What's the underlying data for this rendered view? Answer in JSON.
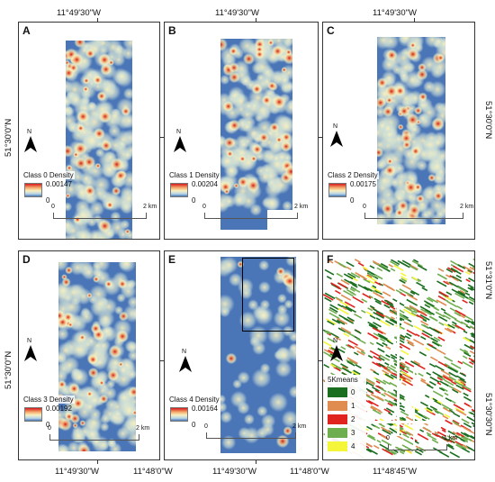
{
  "coords": {
    "top": [
      "11°49'30\"W",
      "11°49'30\"W",
      "11°49'30\"W"
    ],
    "bottom": [
      "11°49'30\"W",
      "11°48'0\"W",
      "11°49'30\"W",
      "11°48'0\"W",
      "11°48'45\"W"
    ],
    "left": [
      "51°30'0\"N",
      "51°30'0\"N"
    ],
    "right": [
      "51°30'0\"N",
      "51°31'0\"N",
      "51°30'30\"N"
    ]
  },
  "panels": [
    {
      "letter": "A",
      "legend_title": "Class 0 Density",
      "max": "0.00147",
      "min": "0",
      "scale_start": "0",
      "scale_end": "2 km"
    },
    {
      "letter": "B",
      "legend_title": "Class 1 Density",
      "max": "0.00204",
      "min": "0",
      "scale_start": "0",
      "scale_end": "2 km"
    },
    {
      "letter": "C",
      "legend_title": "Class 2 Density",
      "max": "0.00175",
      "min": "0",
      "scale_start": "0",
      "scale_end": "2 km"
    },
    {
      "letter": "D",
      "legend_title": "Class 3 Density",
      "max": "0.00192",
      "min": "0",
      "scale_start": "0",
      "scale_end": "2 km"
    },
    {
      "letter": "E",
      "legend_title": "Class 4 Density",
      "max": "0.00164",
      "min": "0",
      "scale_start": "0",
      "scale_end": "2 km"
    },
    {
      "letter": "F",
      "legend_title": "5Kmeans",
      "scale_start": "0",
      "scale_end": "1 km"
    }
  ],
  "north_label": "N",
  "kmeans_classes": [
    {
      "label": "0",
      "color": "#1a6e1f"
    },
    {
      "label": "1",
      "color": "#e08b4f"
    },
    {
      "label": "2",
      "color": "#e0231f"
    },
    {
      "label": "3",
      "color": "#6fae4f"
    },
    {
      "label": "4",
      "color": "#f5f53a"
    }
  ],
  "colors": {
    "ramp_high": "#d7191c",
    "ramp_mid": "#f9f0bf",
    "ramp_low": "#4575b4",
    "background": "#4a76b8"
  }
}
